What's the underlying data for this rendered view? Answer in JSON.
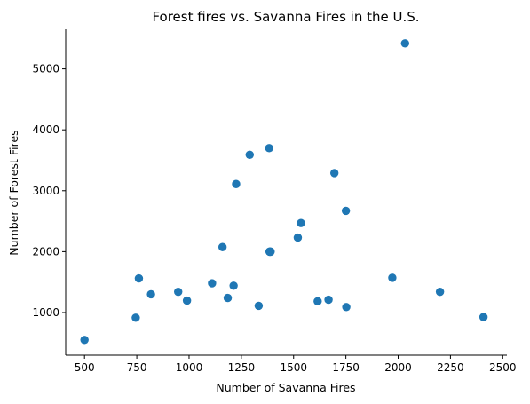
{
  "chart_data": {
    "type": "scatter",
    "title": "Forest fires vs. Savanna Fires in the U.S.",
    "xlabel": "Number of Savanna Fires",
    "ylabel": "Number of Forest Fires",
    "xlim": [
      410,
      2520
    ],
    "ylim": [
      300,
      5650
    ],
    "xticks": [
      500,
      750,
      1000,
      1250,
      1500,
      1750,
      2000,
      2250,
      2500
    ],
    "yticks": [
      1000,
      2000,
      3000,
      4000,
      5000
    ],
    "grid": false,
    "legend": "none",
    "marker_color": "#1f77b4",
    "series": [
      {
        "x": [
          500,
          745,
          760,
          818,
          948,
          990,
          1110,
          1160,
          1185,
          1213,
          1225,
          1290,
          1333,
          1383,
          1385,
          1386,
          1388,
          1390,
          1520,
          1535,
          1615,
          1667,
          1695,
          1750,
          1752,
          1972,
          2033,
          2200,
          2408
        ],
        "y": [
          550,
          915,
          1560,
          1300,
          1340,
          1195,
          1480,
          2075,
          1240,
          1440,
          3110,
          3590,
          1110,
          3700,
          2000,
          2000,
          2000,
          2000,
          2230,
          2470,
          1185,
          1210,
          3290,
          2670,
          1090,
          1570,
          5420,
          1340,
          925
        ]
      }
    ]
  }
}
